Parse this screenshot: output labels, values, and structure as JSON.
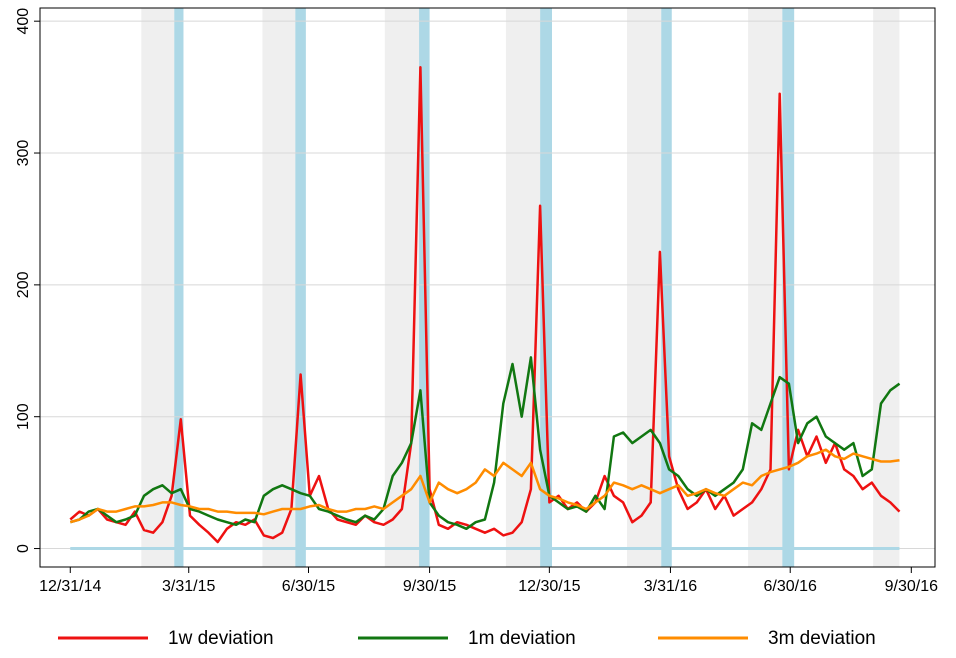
{
  "chart_data": {
    "type": "line",
    "x": [
      "2014-12-31",
      "2015-01-07",
      "2015-01-14",
      "2015-01-21",
      "2015-01-28",
      "2015-02-04",
      "2015-02-11",
      "2015-02-18",
      "2015-02-25",
      "2015-03-04",
      "2015-03-11",
      "2015-03-18",
      "2015-03-25",
      "2015-04-01",
      "2015-04-08",
      "2015-04-15",
      "2015-04-22",
      "2015-04-29",
      "2015-05-06",
      "2015-05-13",
      "2015-05-20",
      "2015-05-27",
      "2015-06-03",
      "2015-06-10",
      "2015-06-17",
      "2015-06-24",
      "2015-07-01",
      "2015-07-08",
      "2015-07-15",
      "2015-07-22",
      "2015-07-29",
      "2015-08-05",
      "2015-08-12",
      "2015-08-19",
      "2015-08-26",
      "2015-09-02",
      "2015-09-09",
      "2015-09-16",
      "2015-09-23",
      "2015-09-30",
      "2015-10-07",
      "2015-10-14",
      "2015-10-21",
      "2015-10-28",
      "2015-11-04",
      "2015-11-11",
      "2015-11-18",
      "2015-11-25",
      "2015-12-02",
      "2015-12-09",
      "2015-12-16",
      "2015-12-23",
      "2015-12-30",
      "2016-01-06",
      "2016-01-13",
      "2016-01-20",
      "2016-01-27",
      "2016-02-03",
      "2016-02-10",
      "2016-02-17",
      "2016-02-24",
      "2016-03-02",
      "2016-03-09",
      "2016-03-16",
      "2016-03-23",
      "2016-03-30",
      "2016-04-06",
      "2016-04-13",
      "2016-04-20",
      "2016-04-27",
      "2016-05-04",
      "2016-05-11",
      "2016-05-18",
      "2016-05-25",
      "2016-06-01",
      "2016-06-08",
      "2016-06-15",
      "2016-06-22",
      "2016-06-29",
      "2016-07-06",
      "2016-07-13",
      "2016-07-20",
      "2016-07-27",
      "2016-08-03",
      "2016-08-10",
      "2016-08-17",
      "2016-08-24",
      "2016-08-31",
      "2016-09-07",
      "2016-09-14",
      "2016-09-21"
    ],
    "series": [
      {
        "name": "1w deviation",
        "color": "#ee1111",
        "values": [
          22,
          28,
          25,
          30,
          22,
          20,
          18,
          28,
          14,
          12,
          20,
          40,
          98,
          25,
          18,
          12,
          5,
          15,
          20,
          18,
          22,
          10,
          8,
          12,
          30,
          132,
          40,
          55,
          30,
          22,
          20,
          18,
          25,
          20,
          18,
          22,
          30,
          80,
          365,
          45,
          18,
          15,
          20,
          18,
          15,
          12,
          15,
          10,
          12,
          20,
          45,
          260,
          35,
          40,
          30,
          35,
          28,
          35,
          55,
          40,
          35,
          20,
          25,
          35,
          225,
          70,
          45,
          30,
          35,
          45,
          30,
          40,
          25,
          30,
          35,
          45,
          60,
          345,
          60,
          90,
          70,
          85,
          65,
          80,
          60,
          55,
          45,
          50,
          40,
          35,
          28
        ]
      },
      {
        "name": "1m deviation",
        "color": "#117711",
        "values": [
          20,
          22,
          28,
          30,
          25,
          20,
          22,
          25,
          40,
          45,
          48,
          42,
          45,
          30,
          28,
          25,
          22,
          20,
          18,
          22,
          20,
          40,
          45,
          48,
          45,
          42,
          40,
          30,
          28,
          25,
          22,
          20,
          25,
          22,
          30,
          55,
          65,
          80,
          120,
          35,
          25,
          20,
          18,
          15,
          20,
          22,
          50,
          110,
          140,
          100,
          145,
          75,
          40,
          35,
          30,
          32,
          28,
          40,
          30,
          85,
          88,
          80,
          85,
          90,
          80,
          60,
          55,
          45,
          40,
          45,
          40,
          45,
          50,
          60,
          95,
          90,
          110,
          130,
          125,
          80,
          95,
          100,
          85,
          80,
          75,
          80,
          55,
          60,
          110,
          120,
          125
        ]
      },
      {
        "name": "3m deviation",
        "color": "#ff8c00",
        "values": [
          20,
          22,
          25,
          30,
          28,
          28,
          30,
          32,
          32,
          33,
          35,
          35,
          33,
          32,
          30,
          30,
          28,
          28,
          27,
          27,
          27,
          26,
          28,
          30,
          30,
          30,
          32,
          33,
          30,
          28,
          28,
          30,
          30,
          32,
          30,
          35,
          40,
          45,
          55,
          35,
          50,
          45,
          42,
          45,
          50,
          60,
          55,
          65,
          60,
          55,
          65,
          45,
          40,
          38,
          35,
          33,
          30,
          35,
          40,
          50,
          48,
          45,
          48,
          45,
          42,
          45,
          48,
          40,
          42,
          45,
          42,
          40,
          45,
          50,
          48,
          55,
          58,
          60,
          62,
          65,
          70,
          72,
          75,
          70,
          68,
          72,
          70,
          68,
          66,
          66,
          67
        ]
      }
    ],
    "shaded_periods": [
      {
        "start": "2015-02-23",
        "end": "2015-03-20",
        "color": "#efefef"
      },
      {
        "start": "2015-03-20",
        "end": "2015-03-27",
        "color": "#add8e6"
      },
      {
        "start": "2015-05-26",
        "end": "2015-06-20",
        "color": "#efefef"
      },
      {
        "start": "2015-06-20",
        "end": "2015-06-28",
        "color": "#add8e6"
      },
      {
        "start": "2015-08-27",
        "end": "2015-09-22",
        "color": "#efefef"
      },
      {
        "start": "2015-09-22",
        "end": "2015-09-30",
        "color": "#add8e6"
      },
      {
        "start": "2015-11-27",
        "end": "2015-12-23",
        "color": "#efefef"
      },
      {
        "start": "2015-12-23",
        "end": "2016-01-01",
        "color": "#add8e6"
      },
      {
        "start": "2016-02-27",
        "end": "2016-03-24",
        "color": "#efefef"
      },
      {
        "start": "2016-03-24",
        "end": "2016-04-01",
        "color": "#add8e6"
      },
      {
        "start": "2016-05-29",
        "end": "2016-06-24",
        "color": "#efefef"
      },
      {
        "start": "2016-06-24",
        "end": "2016-07-03",
        "color": "#add8e6"
      },
      {
        "start": "2016-09-01",
        "end": "2016-09-21",
        "color": "#efefef"
      }
    ],
    "zero_line": {
      "value": 0,
      "color": "#add8e6"
    },
    "xlim": [
      "2014-12-08",
      "2016-10-18"
    ],
    "xticks": [
      {
        "value": "2014-12-31",
        "label": "12/31/14"
      },
      {
        "value": "2015-03-31",
        "label": "3/31/15"
      },
      {
        "value": "2015-06-30",
        "label": "6/30/15"
      },
      {
        "value": "2015-09-30",
        "label": "9/30/15"
      },
      {
        "value": "2015-12-30",
        "label": "12/30/15"
      },
      {
        "value": "2016-03-31",
        "label": "3/31/16"
      },
      {
        "value": "2016-06-30",
        "label": "6/30/16"
      },
      {
        "value": "2016-09-30",
        "label": "9/30/16"
      }
    ],
    "ylim": [
      -14,
      410
    ],
    "yticks": [
      0,
      100,
      200,
      300,
      400
    ],
    "grid": true,
    "legend": "bottom"
  }
}
